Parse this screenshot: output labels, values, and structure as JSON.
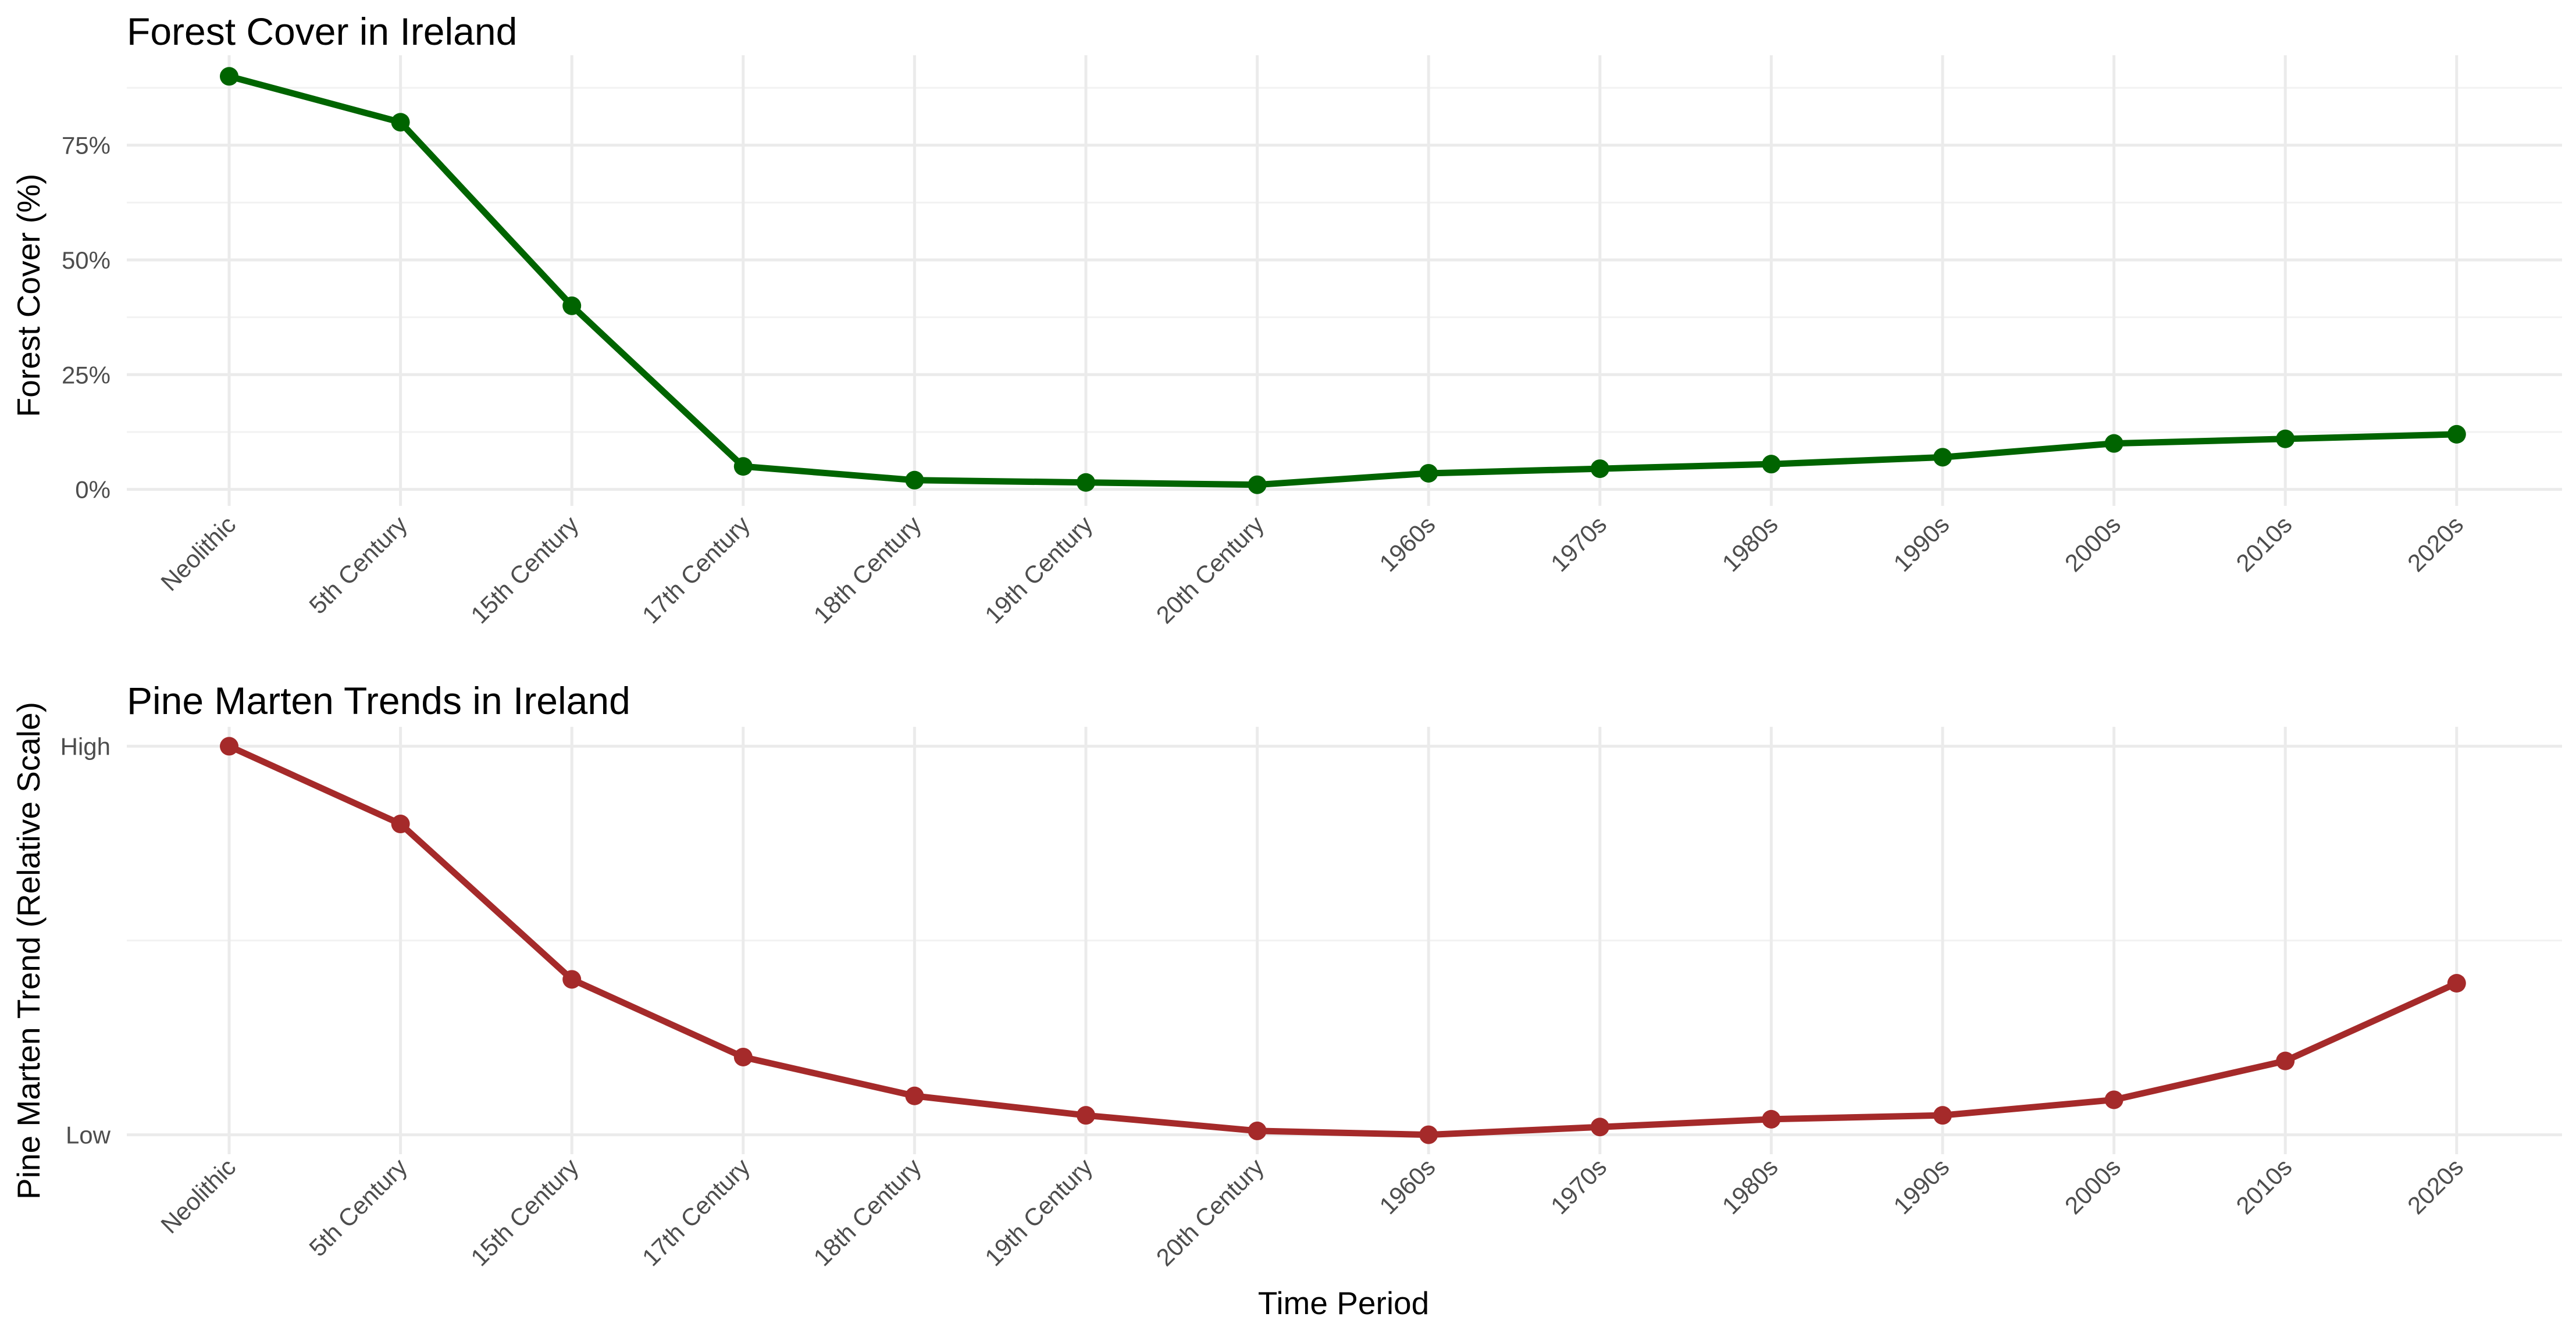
{
  "figure": {
    "xlabel": "Time Period"
  },
  "colors": {
    "forest": "#006400",
    "marten": "#a52a2a"
  },
  "chart_data": [
    {
      "type": "line",
      "title": "Forest Cover in Ireland",
      "xlabel": "",
      "ylabel": "Forest Cover (%)",
      "categories": [
        "Neolithic",
        "5th Century",
        "15th Century",
        "17th Century",
        "18th Century",
        "19th Century",
        "20th Century",
        "1960s",
        "1970s",
        "1980s",
        "1990s",
        "2000s",
        "2010s",
        "2020s"
      ],
      "y_ticks": [
        0,
        25,
        50,
        75
      ],
      "y_tick_labels": [
        "0%",
        "25%",
        "50%",
        "75%"
      ],
      "ylim": [
        -3.6,
        94.6
      ],
      "grid": true,
      "series": [
        {
          "values": [
            90,
            80,
            40,
            5,
            2,
            1.5,
            1,
            3.5,
            4.5,
            5.5,
            7,
            10,
            11,
            12
          ]
        }
      ]
    },
    {
      "type": "line",
      "title": "Pine Marten Trends in Ireland",
      "xlabel": "Time Period",
      "ylabel": "Pine Marten Trend (Relative Scale)",
      "categories": [
        "Neolithic",
        "5th Century",
        "15th Century",
        "17th Century",
        "18th Century",
        "19th Century",
        "20th Century",
        "1960s",
        "1970s",
        "1980s",
        "1990s",
        "2000s",
        "2010s",
        "2020s"
      ],
      "y_ticks": [
        0,
        1
      ],
      "y_tick_labels": [
        "Low",
        "High"
      ],
      "ylim": [
        -0.05,
        1.05
      ],
      "grid": true,
      "series": [
        {
          "values": [
            1.0,
            0.8,
            0.4,
            0.2,
            0.1,
            0.05,
            0.01,
            0.0,
            0.02,
            0.04,
            0.05,
            0.09,
            0.19,
            0.39
          ]
        }
      ]
    }
  ]
}
